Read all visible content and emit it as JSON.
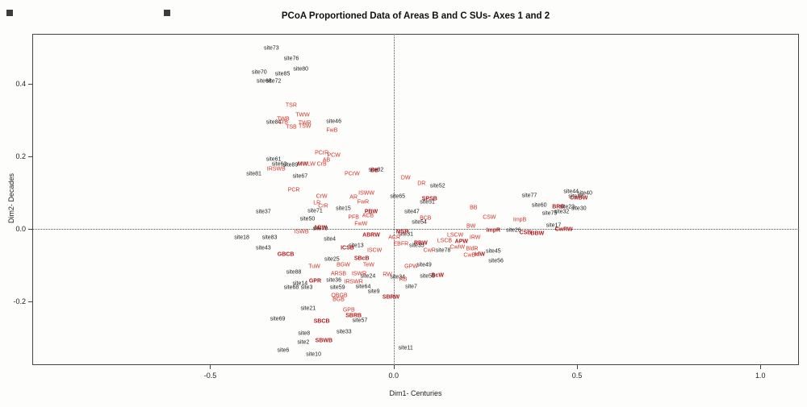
{
  "title": "PCoA Proportioned Data of Areas B and C SUs- Axes 1 and 2",
  "axes": {
    "xlabel": "Dim1- Centuries",
    "ylabel": "Dim2- Decades"
  },
  "colors": {
    "site_label": "#1a1a1a",
    "type_label": "#d93025",
    "type_label_bold": "#b01818",
    "axis": "#444444",
    "background": "#fdfdfb"
  },
  "chart_data": {
    "type": "scatter",
    "title": "PCoA Proportioned Data of Areas B and C SUs- Axes 1 and 2",
    "xlabel": "Dim1- Centuries",
    "ylabel": "Dim2- Decades",
    "xlim": [
      -0.985,
      1.105
    ],
    "ylim": [
      -0.376,
      0.538
    ],
    "x_ticks": [
      {
        "v": -0.5,
        "label": "-0.5"
      },
      {
        "v": 0.0,
        "label": "0.0"
      },
      {
        "v": 0.5,
        "label": "0.5"
      },
      {
        "v": 1.0,
        "label": "1.0"
      }
    ],
    "y_ticks": [
      {
        "v": 0.4,
        "label": "0.4"
      },
      {
        "v": 0.2,
        "label": "0.2"
      },
      {
        "v": 0.0,
        "label": "0.0"
      },
      {
        "v": -0.2,
        "label": "-0.2"
      }
    ],
    "grid": "dotted lines at x=0 and y=0",
    "legend": "none",
    "series": [
      {
        "name": "sites",
        "color": "#1a1a1a",
        "points": [
          {
            "label": "site73",
            "x": -0.333,
            "y": 0.498
          },
          {
            "label": "site76",
            "x": -0.279,
            "y": 0.469
          },
          {
            "label": "site70",
            "x": -0.366,
            "y": 0.431
          },
          {
            "label": "site85",
            "x": -0.303,
            "y": 0.427
          },
          {
            "label": "site80",
            "x": -0.253,
            "y": 0.44
          },
          {
            "label": "site66",
            "x": -0.353,
            "y": 0.407
          },
          {
            "label": "site72",
            "x": -0.327,
            "y": 0.407
          },
          {
            "label": "site84",
            "x": -0.327,
            "y": 0.293
          },
          {
            "label": "site46",
            "x": -0.163,
            "y": 0.296
          },
          {
            "label": "site61",
            "x": -0.327,
            "y": 0.191
          },
          {
            "label": "site63",
            "x": -0.312,
            "y": 0.178
          },
          {
            "label": "site89",
            "x": -0.281,
            "y": 0.176
          },
          {
            "label": "site81",
            "x": -0.381,
            "y": 0.151
          },
          {
            "label": "site67",
            "x": -0.255,
            "y": 0.144
          },
          {
            "label": "site82",
            "x": -0.048,
            "y": 0.162
          },
          {
            "label": "site37",
            "x": -0.355,
            "y": 0.047
          },
          {
            "label": "site71",
            "x": -0.214,
            "y": 0.049
          },
          {
            "label": "site15",
            "x": -0.137,
            "y": 0.056
          },
          {
            "label": "site50",
            "x": -0.235,
            "y": 0.027
          },
          {
            "label": "site52",
            "x": 0.12,
            "y": 0.118
          },
          {
            "label": "site65",
            "x": 0.011,
            "y": 0.089
          },
          {
            "label": "site51",
            "x": 0.092,
            "y": 0.073
          },
          {
            "label": "site47",
            "x": 0.05,
            "y": 0.047
          },
          {
            "label": "site54",
            "x": 0.07,
            "y": 0.018
          },
          {
            "label": "site31",
            "x": 0.033,
            "y": -0.016
          },
          {
            "label": "site13",
            "x": -0.102,
            "y": -0.047
          },
          {
            "label": "site18",
            "x": -0.414,
            "y": -0.024
          },
          {
            "label": "site83",
            "x": -0.338,
            "y": -0.024
          },
          {
            "label": "site4",
            "x": -0.174,
            "y": -0.029
          },
          {
            "label": "site43",
            "x": -0.355,
            "y": -0.053
          },
          {
            "label": "site79",
            "x": -0.2,
            "y": 0.0
          },
          {
            "label": "site25",
            "x": -0.168,
            "y": -0.084
          },
          {
            "label": "site88",
            "x": -0.272,
            "y": -0.12
          },
          {
            "label": "site36",
            "x": -0.163,
            "y": -0.142
          },
          {
            "label": "site59",
            "x": -0.153,
            "y": -0.162
          },
          {
            "label": "site64",
            "x": -0.083,
            "y": -0.16
          },
          {
            "label": "site9",
            "x": -0.054,
            "y": -0.173
          },
          {
            "label": "site68",
            "x": -0.279,
            "y": -0.162
          },
          {
            "label": "site3",
            "x": -0.237,
            "y": -0.162
          },
          {
            "label": "site14",
            "x": -0.255,
            "y": -0.151
          },
          {
            "label": "site24",
            "x": -0.07,
            "y": -0.131
          },
          {
            "label": "site21",
            "x": -0.233,
            "y": -0.22
          },
          {
            "label": "site69",
            "x": -0.316,
            "y": -0.249
          },
          {
            "label": "site57",
            "x": -0.092,
            "y": -0.253
          },
          {
            "label": "site33",
            "x": -0.135,
            "y": -0.284
          },
          {
            "label": "site8",
            "x": -0.244,
            "y": -0.289
          },
          {
            "label": "site2",
            "x": -0.246,
            "y": -0.313
          },
          {
            "label": "site6",
            "x": -0.301,
            "y": -0.336
          },
          {
            "label": "site10",
            "x": -0.218,
            "y": -0.347
          },
          {
            "label": "site11",
            "x": 0.033,
            "y": -0.329
          },
          {
            "label": "site7",
            "x": 0.048,
            "y": -0.16
          },
          {
            "label": "site34",
            "x": 0.011,
            "y": -0.133
          },
          {
            "label": "site49",
            "x": 0.083,
            "y": -0.1
          },
          {
            "label": "site78",
            "x": 0.135,
            "y": -0.06
          },
          {
            "label": "site45",
            "x": 0.272,
            "y": -0.062
          },
          {
            "label": "site56",
            "x": 0.279,
            "y": -0.089
          },
          {
            "label": "site26",
            "x": 0.327,
            "y": -0.004
          },
          {
            "label": "site17",
            "x": 0.436,
            "y": 0.009
          },
          {
            "label": "site77",
            "x": 0.37,
            "y": 0.091
          },
          {
            "label": "site60",
            "x": 0.397,
            "y": 0.064
          },
          {
            "label": "site23",
            "x": 0.473,
            "y": 0.06
          },
          {
            "label": "site30",
            "x": 0.505,
            "y": 0.056
          },
          {
            "label": "site75",
            "x": 0.425,
            "y": 0.042
          },
          {
            "label": "site32",
            "x": 0.458,
            "y": 0.047
          },
          {
            "label": "site44",
            "x": 0.484,
            "y": 0.102
          },
          {
            "label": "site40",
            "x": 0.521,
            "y": 0.098
          },
          {
            "label": "site48",
            "x": 0.497,
            "y": 0.089
          },
          {
            "label": "site35",
            "x": 0.063,
            "y": -0.047
          },
          {
            "label": "site53",
            "x": 0.092,
            "y": -0.131
          }
        ]
      },
      {
        "name": "types",
        "color": "#d93025",
        "bold_color": "#b01818",
        "points": [
          {
            "label": "TSR",
            "x": -0.279,
            "y": 0.34
          },
          {
            "label": "CrB",
            "x": -0.301,
            "y": 0.293
          },
          {
            "label": "TWW",
            "x": -0.248,
            "y": 0.313
          },
          {
            "label": "TWB",
            "x": -0.301,
            "y": 0.302
          },
          {
            "label": "TWR",
            "x": -0.242,
            "y": 0.291
          },
          {
            "label": "TSB",
            "x": -0.279,
            "y": 0.28
          },
          {
            "label": "TSW",
            "x": -0.242,
            "y": 0.282
          },
          {
            "label": "FwB",
            "x": -0.168,
            "y": 0.271
          },
          {
            "label": "PCrR",
            "x": -0.196,
            "y": 0.209
          },
          {
            "label": "PCW",
            "x": -0.163,
            "y": 0.202
          },
          {
            "label": "AB",
            "x": -0.183,
            "y": 0.189
          },
          {
            "label": "MW",
            "x": -0.248,
            "y": 0.178,
            "bold": true
          },
          {
            "label": "LW",
            "x": -0.224,
            "y": 0.178
          },
          {
            "label": "CrB",
            "x": -0.196,
            "y": 0.178
          },
          {
            "label": "IRSWB",
            "x": -0.32,
            "y": 0.164
          },
          {
            "label": "PCrW",
            "x": -0.113,
            "y": 0.151
          },
          {
            "label": "BB",
            "x": -0.052,
            "y": 0.161,
            "bold": true
          },
          {
            "label": "PCR",
            "x": -0.272,
            "y": 0.107
          },
          {
            "label": "CrW",
            "x": -0.196,
            "y": 0.089
          },
          {
            "label": "LR",
            "x": -0.209,
            "y": 0.071
          },
          {
            "label": "CrR",
            "x": -0.192,
            "y": 0.062
          },
          {
            "label": "AR",
            "x": -0.109,
            "y": 0.087
          },
          {
            "label": "ISWW",
            "x": -0.074,
            "y": 0.098
          },
          {
            "label": "FwR",
            "x": -0.083,
            "y": 0.073
          },
          {
            "label": "PBW",
            "x": -0.061,
            "y": 0.047,
            "bold": true
          },
          {
            "label": "PFB",
            "x": -0.109,
            "y": 0.031
          },
          {
            "label": "ACB",
            "x": -0.07,
            "y": 0.036
          },
          {
            "label": "FwW",
            "x": -0.089,
            "y": 0.013
          },
          {
            "label": "ISWB",
            "x": -0.251,
            "y": -0.009
          },
          {
            "label": "ABW",
            "x": -0.2,
            "y": 0.002,
            "bold": true
          },
          {
            "label": "ABRW",
            "x": -0.061,
            "y": -0.018,
            "bold": true
          },
          {
            "label": "ACR",
            "x": 0.002,
            "y": -0.024
          },
          {
            "label": "MSR",
            "x": 0.024,
            "y": -0.009,
            "bold": true
          },
          {
            "label": "EBFR",
            "x": 0.02,
            "y": -0.042
          },
          {
            "label": "ICSB",
            "x": -0.126,
            "y": -0.053,
            "bold": true
          },
          {
            "label": "ISCW",
            "x": -0.052,
            "y": -0.06
          },
          {
            "label": "BGW",
            "x": -0.137,
            "y": -0.1
          },
          {
            "label": "TuW",
            "x": -0.216,
            "y": -0.104
          },
          {
            "label": "TeW",
            "x": -0.068,
            "y": -0.1
          },
          {
            "label": "SBcB",
            "x": -0.087,
            "y": -0.082,
            "bold": true
          },
          {
            "label": "GBCB",
            "x": -0.294,
            "y": -0.071,
            "bold": true
          },
          {
            "label": "ARSB",
            "x": -0.15,
            "y": -0.124
          },
          {
            "label": "ISWR",
            "x": -0.094,
            "y": -0.124
          },
          {
            "label": "RW",
            "x": -0.017,
            "y": -0.127
          },
          {
            "label": "IRSWR",
            "x": -0.109,
            "y": -0.147
          },
          {
            "label": "GPR",
            "x": -0.214,
            "y": -0.144,
            "bold": true
          },
          {
            "label": "OBGB",
            "x": -0.148,
            "y": -0.184
          },
          {
            "label": "BGB",
            "x": -0.15,
            "y": -0.196
          },
          {
            "label": "GPB",
            "x": -0.122,
            "y": -0.224
          },
          {
            "label": "DW",
            "x": 0.033,
            "y": 0.14
          },
          {
            "label": "DR",
            "x": 0.076,
            "y": 0.124
          },
          {
            "label": "SPSB",
            "x": 0.098,
            "y": 0.082,
            "bold": true
          },
          {
            "label": "BB",
            "x": 0.218,
            "y": 0.058
          },
          {
            "label": "CSW",
            "x": 0.261,
            "y": 0.031
          },
          {
            "label": "ImpB",
            "x": 0.344,
            "y": 0.024
          },
          {
            "label": "BW",
            "x": 0.211,
            "y": 0.007
          },
          {
            "label": "ImpR",
            "x": 0.272,
            "y": -0.004,
            "bold": true
          },
          {
            "label": "BCB",
            "x": 0.087,
            "y": 0.029
          },
          {
            "label": "LSCW",
            "x": 0.168,
            "y": -0.018
          },
          {
            "label": "IRW",
            "x": 0.222,
            "y": -0.024
          },
          {
            "label": "LSCB",
            "x": 0.139,
            "y": -0.033
          },
          {
            "label": "APW",
            "x": 0.185,
            "y": -0.036,
            "bold": true
          },
          {
            "label": "CwIW",
            "x": 0.174,
            "y": -0.051
          },
          {
            "label": "BldR",
            "x": 0.214,
            "y": -0.056
          },
          {
            "label": "CwB",
            "x": 0.207,
            "y": -0.073
          },
          {
            "label": "IdW",
            "x": 0.235,
            "y": -0.071,
            "bold": true
          },
          {
            "label": "CwR",
            "x": 0.098,
            "y": -0.06
          },
          {
            "label": "RBW",
            "x": 0.074,
            "y": -0.04,
            "bold": true
          },
          {
            "label": "GPW",
            "x": 0.048,
            "y": -0.104
          },
          {
            "label": "RB",
            "x": 0.026,
            "y": -0.14
          },
          {
            "label": "BcW",
            "x": 0.12,
            "y": -0.129,
            "bold": true
          },
          {
            "label": "SBRW",
            "x": -0.007,
            "y": -0.189,
            "bold": true
          },
          {
            "label": "SBCB",
            "x": -0.196,
            "y": -0.256,
            "bold": true
          },
          {
            "label": "SBWB",
            "x": -0.19,
            "y": -0.309,
            "bold": true
          },
          {
            "label": "SBRB",
            "x": -0.109,
            "y": -0.24,
            "bold": true
          },
          {
            "label": "CwBW",
            "x": 0.505,
            "y": 0.084,
            "bold": true
          },
          {
            "label": "BRB",
            "x": 0.449,
            "y": 0.06,
            "bold": true
          },
          {
            "label": "CwRW",
            "x": 0.464,
            "y": -0.002,
            "bold": true
          },
          {
            "label": "CSB",
            "x": 0.359,
            "y": -0.011,
            "bold": true
          },
          {
            "label": "BBW",
            "x": 0.392,
            "y": -0.013,
            "bold": true
          }
        ]
      }
    ]
  }
}
